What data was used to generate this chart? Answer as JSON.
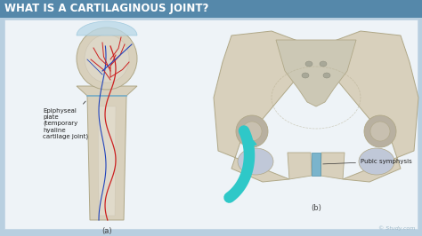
{
  "title": "WHAT IS A CARTILAGINOUS JOINT?",
  "title_color": "#ffffff",
  "title_bg_color": "#5588aa",
  "bg_color": "#b8cfe0",
  "panel_bg": "#eef3f7",
  "label_a": "(a)",
  "label_b": "(b)",
  "annotation_epiphyseal": "Epiphyseal\nplate\n(temporary\nhyaline\ncartilage joint)",
  "annotation_pubic": "Pubic symphysis",
  "watermark": "© Study.com",
  "arrow_color": "#2ec8c8",
  "bone_color": "#d8d0bc",
  "bone_edge": "#b0a888",
  "bone_inner": "#c8c0aa",
  "cartilage_color": "#b8d8e8",
  "vessel_red": "#cc2020",
  "vessel_blue": "#2244bb",
  "title_fontsize": 8.5,
  "label_fontsize": 6,
  "annot_fontsize": 5,
  "watermark_fontsize": 4.5
}
